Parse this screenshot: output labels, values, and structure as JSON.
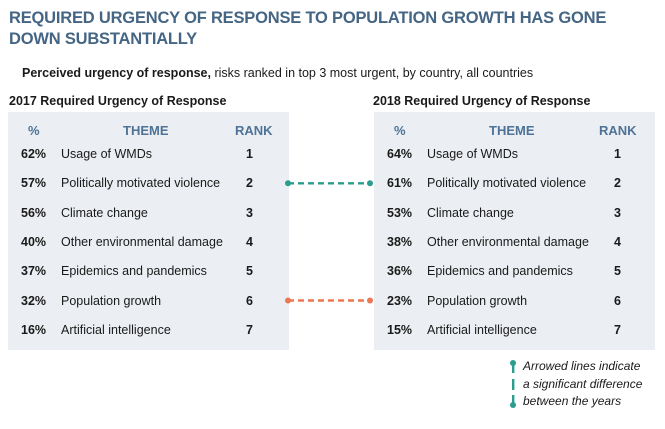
{
  "title": "REQUIRED URGENCY OF RESPONSE TO POPULATION GROWTH HAS GONE DOWN SUBSTANTIALLY",
  "subtitle_bold": "Perceived urgency of response,",
  "subtitle_rest": " risks ranked in top 3 most urgent, by country, all countries",
  "colors": {
    "title": "#456584",
    "header": "#4e7397",
    "panel_bg": "#ebeef2",
    "teal": "#2a9d8f",
    "orange": "#ee7752"
  },
  "legend": {
    "lines": [
      "Arrowed lines indicate",
      "a significant difference",
      "between the years"
    ]
  },
  "chart_data": {
    "type": "table",
    "title": "REQUIRED URGENCY OF RESPONSE TO POPULATION GROWTH HAS GONE DOWN SUBSTANTIALLY",
    "subtitle": "Perceived urgency of response, risks ranked in top 3 most urgent, by country, all countries",
    "columns": [
      "%",
      "THEME",
      "RANK"
    ],
    "tables": [
      {
        "title": "2017 Required Urgency of Response",
        "rows": [
          {
            "pct": "62%",
            "theme": "Usage of WMDs",
            "rank": "1"
          },
          {
            "pct": "57%",
            "theme": "Politically motivated violence",
            "rank": "2"
          },
          {
            "pct": "56%",
            "theme": "Climate change",
            "rank": "3"
          },
          {
            "pct": "40%",
            "theme": "Other environmental damage",
            "rank": "4"
          },
          {
            "pct": "37%",
            "theme": "Epidemics and pandemics",
            "rank": "5"
          },
          {
            "pct": "32%",
            "theme": "Population growth",
            "rank": "6"
          },
          {
            "pct": "16%",
            "theme": "Artificial intelligence",
            "rank": "7"
          }
        ]
      },
      {
        "title": "2018 Required Urgency of Response",
        "rows": [
          {
            "pct": "64%",
            "theme": "Usage of WMDs",
            "rank": "1"
          },
          {
            "pct": "61%",
            "theme": "Politically motivated violence",
            "rank": "2"
          },
          {
            "pct": "53%",
            "theme": "Climate change",
            "rank": "3"
          },
          {
            "pct": "38%",
            "theme": "Other environmental damage",
            "rank": "4"
          },
          {
            "pct": "36%",
            "theme": "Epidemics and pandemics",
            "rank": "5"
          },
          {
            "pct": "23%",
            "theme": "Population growth",
            "rank": "6"
          },
          {
            "pct": "15%",
            "theme": "Artificial intelligence",
            "rank": "7"
          }
        ]
      }
    ],
    "significant_changes": [
      {
        "theme": "Politically motivated violence",
        "row_index": 1,
        "direction": "up",
        "color": "#2a9d8f"
      },
      {
        "theme": "Population growth",
        "row_index": 5,
        "direction": "down",
        "color": "#ee7752"
      }
    ]
  }
}
